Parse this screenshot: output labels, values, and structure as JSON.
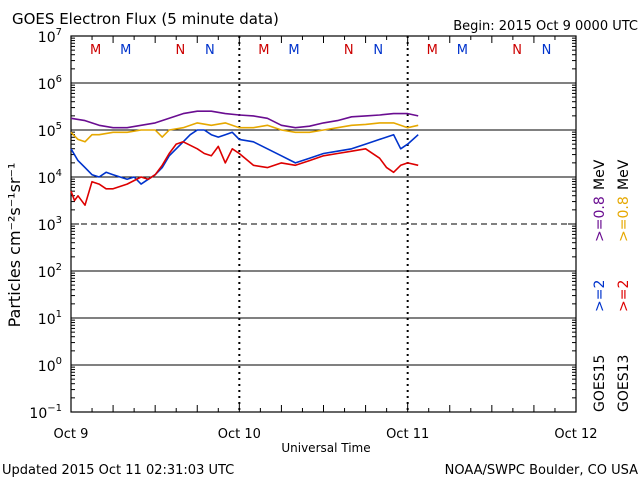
{
  "chart_data": {
    "type": "line",
    "title": "GOES Electron Flux (5 minute data)",
    "begin_label": "Begin: 2015 Oct 9 0000 UTC",
    "xlabel": "Universal Time",
    "ylabel": "Particles cm⁻²s⁻¹sr⁻¹",
    "x_ticks": [
      "Oct 9",
      "Oct 10",
      "Oct 11",
      "Oct 12"
    ],
    "xlim_hours": [
      0,
      72
    ],
    "ylim_log10": [
      -1,
      7
    ],
    "y_ticks": [
      {
        "base": "10",
        "exp": "7"
      },
      {
        "base": "10",
        "exp": "6"
      },
      {
        "base": "10",
        "exp": "5"
      },
      {
        "base": "10",
        "exp": "4"
      },
      {
        "base": "10",
        "exp": "3"
      },
      {
        "base": "10",
        "exp": "2"
      },
      {
        "base": "10",
        "exp": "1"
      },
      {
        "base": "10",
        "exp": "0"
      },
      {
        "base": "10",
        "exp": "−1"
      }
    ],
    "threshold_log10": 3,
    "mn_markers": [
      {
        "label": "M",
        "hour": 3.5,
        "color": "#cc0000"
      },
      {
        "label": "M",
        "hour": 7.8,
        "color": "#0033cc"
      },
      {
        "label": "N",
        "hour": 15.6,
        "color": "#cc0000"
      },
      {
        "label": "N",
        "hour": 19.8,
        "color": "#0033cc"
      },
      {
        "label": "M",
        "hour": 27.5,
        "color": "#cc0000"
      },
      {
        "label": "M",
        "hour": 31.8,
        "color": "#0033cc"
      },
      {
        "label": "N",
        "hour": 39.6,
        "color": "#cc0000"
      },
      {
        "label": "N",
        "hour": 43.8,
        "color": "#0033cc"
      },
      {
        "label": "M",
        "hour": 51.5,
        "color": "#cc0000"
      },
      {
        "label": "M",
        "hour": 55.8,
        "color": "#0033cc"
      },
      {
        "label": "N",
        "hour": 63.6,
        "color": "#cc0000"
      },
      {
        "label": "N",
        "hour": 67.8,
        "color": "#0033cc"
      }
    ],
    "series": [
      {
        "name": "GOES15 >=0.8 MeV",
        "color": "#6a0d91",
        "x": [
          0,
          2,
          4,
          6,
          8,
          10,
          12,
          14,
          16,
          18,
          20,
          22,
          24,
          26,
          28,
          30,
          32,
          34,
          36,
          38,
          40,
          42,
          44,
          46,
          48,
          49.5
        ],
        "y": [
          5.25,
          5.2,
          5.1,
          5.05,
          5.05,
          5.1,
          5.15,
          5.25,
          5.35,
          5.4,
          5.4,
          5.35,
          5.32,
          5.3,
          5.25,
          5.1,
          5.05,
          5.08,
          5.15,
          5.2,
          5.28,
          5.3,
          5.32,
          5.35,
          5.35,
          5.3
        ]
      },
      {
        "name": "GOES13 >=0.8 MeV",
        "color": "#e6a800",
        "x": [
          0,
          1,
          2,
          3,
          4,
          6,
          8,
          10,
          12,
          13,
          14,
          16,
          18,
          20,
          22,
          24,
          26,
          28,
          30,
          32,
          34,
          36,
          38,
          40,
          42,
          44,
          46,
          48,
          49.5
        ],
        "y": [
          4.95,
          4.8,
          4.75,
          4.9,
          4.9,
          4.95,
          4.95,
          5.0,
          5.0,
          4.85,
          5.0,
          5.05,
          5.15,
          5.1,
          5.15,
          5.05,
          5.05,
          5.1,
          5.0,
          4.95,
          4.95,
          5.0,
          5.05,
          5.1,
          5.12,
          5.15,
          5.15,
          5.05,
          5.1
        ]
      },
      {
        "name": "GOES15 >=2 MeV",
        "color": "#0033cc",
        "x": [
          0,
          1,
          2,
          3,
          4,
          5,
          6,
          7,
          8,
          9,
          10,
          11,
          12,
          13,
          14,
          15,
          16,
          17,
          18,
          19,
          20,
          21,
          22,
          23,
          24,
          26,
          28,
          30,
          32,
          34,
          36,
          38,
          40,
          42,
          44,
          46,
          47,
          48,
          49.5
        ],
        "y": [
          4.6,
          4.35,
          4.2,
          4.05,
          4.0,
          4.1,
          4.05,
          4.0,
          3.95,
          4.0,
          3.85,
          3.95,
          4.05,
          4.2,
          4.45,
          4.6,
          4.75,
          4.9,
          5.0,
          5.0,
          4.9,
          4.85,
          4.9,
          4.95,
          4.8,
          4.75,
          4.6,
          4.45,
          4.3,
          4.4,
          4.5,
          4.55,
          4.6,
          4.7,
          4.8,
          4.9,
          4.6,
          4.7,
          4.9
        ]
      },
      {
        "name": "GOES13 >=2 MeV",
        "color": "#dd0000",
        "x": [
          0,
          0.5,
          1,
          2,
          3,
          4,
          5,
          6,
          8,
          10,
          11,
          12,
          13,
          14,
          15,
          16,
          18,
          19,
          20,
          21,
          22,
          23,
          24,
          26,
          28,
          30,
          32,
          34,
          36,
          38,
          40,
          42,
          44,
          45,
          46,
          47,
          48,
          49.5
        ],
        "y": [
          3.7,
          3.5,
          3.6,
          3.4,
          3.9,
          3.85,
          3.75,
          3.75,
          3.85,
          4.0,
          3.95,
          4.05,
          4.25,
          4.5,
          4.7,
          4.75,
          4.6,
          4.5,
          4.45,
          4.65,
          4.3,
          4.6,
          4.5,
          4.25,
          4.2,
          4.3,
          4.25,
          4.35,
          4.45,
          4.5,
          4.55,
          4.6,
          4.4,
          4.2,
          4.1,
          4.25,
          4.3,
          4.25
        ]
      }
    ],
    "right_legend": {
      "goes15": "GOES15",
      "goes13": "GOES13",
      "p2_15": ">=2",
      "p2_13": ">=2",
      "p08_15": ">=0.8",
      "p08_13": ">=0.8",
      "mev15": "MeV",
      "mev13": "MeV",
      "color_p2_15": "#0033cc",
      "color_p2_13": "#dd0000",
      "color_p08_15": "#6a0d91",
      "color_p08_13": "#e6a800"
    }
  },
  "footer": {
    "updated": "Updated 2015 Oct 11 02:31:03 UTC",
    "credit": "NOAA/SWPC Boulder, CO USA"
  }
}
